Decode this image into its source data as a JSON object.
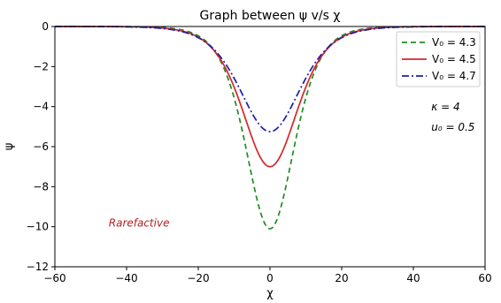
{
  "chart_data": {
    "type": "line",
    "title": "Graph between ψ v/s χ",
    "xlabel": "χ",
    "ylabel": "ψ",
    "xlim": [
      -60,
      60
    ],
    "ylim": [
      -12,
      0
    ],
    "xticks": [
      -60,
      -40,
      -20,
      0,
      20,
      40,
      60
    ],
    "yticks": [
      0,
      -2,
      -4,
      -6,
      -8,
      -10,
      -12
    ],
    "grid": false,
    "legend_position": "top-right",
    "series": [
      {
        "name": "V₀ = 4.3",
        "amplitude": -10.1,
        "width": 9.0,
        "color": "#228B22",
        "dash": "dashed"
      },
      {
        "name": "V₀ = 4.5",
        "amplitude": -7.0,
        "width": 10.2,
        "color": "#d62728",
        "dash": "solid"
      },
      {
        "name": "V₀ = 4.7",
        "amplitude": -5.25,
        "width": 11.2,
        "color": "#1f1fa8",
        "dash": "dashdot"
      }
    ],
    "annotations": [
      {
        "text": "κ = 4",
        "x": 45,
        "y": -4.2,
        "color": "#000000"
      },
      {
        "text": "u₀ = 0.5",
        "x": 45,
        "y": -5.2,
        "color": "#000000"
      },
      {
        "text": "Rarefactive",
        "x": -45,
        "y": -10.0,
        "color": "#b22222"
      }
    ]
  }
}
